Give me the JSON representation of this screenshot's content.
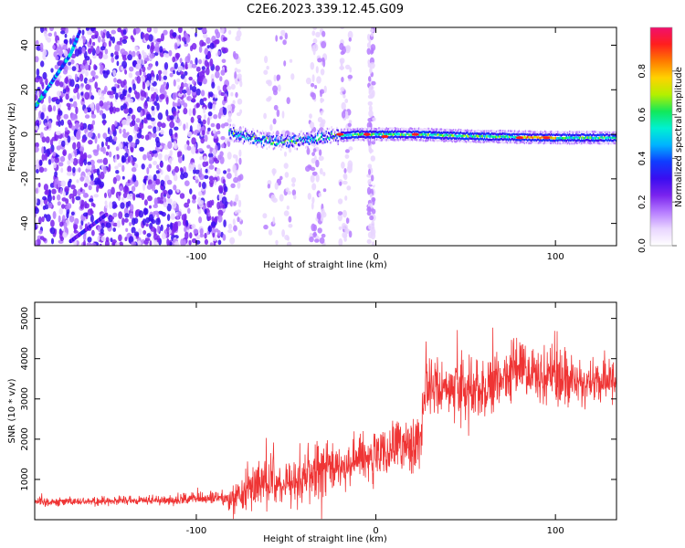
{
  "figure": {
    "title": "C2E6.2023.339.12.45.G09"
  },
  "colors": {
    "snr_line": "#ef3434",
    "rainbow": [
      "#ffffff",
      "#e9d6ff",
      "#b67cff",
      "#7a23ee",
      "#3a0df0",
      "#0f3cff",
      "#00b4ff",
      "#00f0d2",
      "#12e85a",
      "#b4f000",
      "#ffd200",
      "#ff7a00",
      "#ff1e1e",
      "#f0106e"
    ]
  },
  "chart_data": [
    {
      "type": "heatmap",
      "xlabel": "Height of straight line (km)",
      "ylabel": "Frequency (Hz)",
      "xlim": [
        -190,
        134
      ],
      "ylim": [
        -50,
        48
      ],
      "xticks": [
        -100,
        0,
        100
      ],
      "xtick_labels": [
        "-100",
        "0",
        "100"
      ],
      "yticks": [
        -40,
        -20,
        0,
        20,
        40
      ],
      "ytick_labels": [
        "-40",
        "-20",
        "0",
        "20",
        "40"
      ],
      "grid": false,
      "colorbar": {
        "label": "Normalized spectral amplitude",
        "range": [
          0,
          1
        ],
        "ticks": [
          0,
          0.2,
          0.4,
          0.6,
          0.8
        ],
        "tick_labels": [
          "0.0",
          "0.2",
          "0.4",
          "0.6",
          "0.8"
        ]
      },
      "features": [
        {
          "kind": "noise",
          "x_range": [
            -190,
            -83
          ],
          "f_range": [
            -50,
            48
          ],
          "amplitude": 0.25
        },
        {
          "kind": "sparse_noise",
          "x_range": [
            -83,
            0
          ],
          "f_range": [
            -50,
            48
          ],
          "amplitude": 0.12
        },
        {
          "kind": "dispersive_trace",
          "x": [
            -190,
            -180,
            -170,
            -165
          ],
          "f": [
            12,
            24,
            36,
            46
          ],
          "amplitude": 0.45
        },
        {
          "kind": "faint_trace",
          "x": [
            -170,
            -150
          ],
          "f": [
            -48,
            -36
          ],
          "amplitude": 0.3
        },
        {
          "kind": "carrier",
          "x": [
            -82,
            -60,
            -45,
            -30,
            -10,
            0,
            20,
            60,
            100,
            134
          ],
          "f": [
            1,
            -3,
            -3,
            -1,
            0,
            0,
            0,
            -1,
            -1.5,
            -1.5
          ],
          "amplitude": 0.6
        },
        {
          "kind": "peaks",
          "x": [
            -20,
            -5,
            5,
            22,
            80,
            95
          ],
          "f": [
            0,
            0,
            -1,
            0,
            -1.5,
            -1.5
          ],
          "amplitude": 0.9
        }
      ]
    },
    {
      "type": "line",
      "xlabel": "Height of straight line (km)",
      "ylabel": "SNR (10 * v/v)",
      "xlim": [
        -190,
        134
      ],
      "ylim": [
        0,
        5400
      ],
      "xticks": [
        -100,
        0,
        100
      ],
      "xtick_labels": [
        "-100",
        "0",
        "100"
      ],
      "yticks": [
        1000,
        2000,
        3000,
        4000,
        5000
      ],
      "ytick_labels": [
        "1000",
        "2000",
        "3000",
        "4000",
        "5000"
      ],
      "grid": false,
      "series": [
        {
          "color": "#ef3434",
          "x": [
            -190,
            -180,
            -160,
            -140,
            -120,
            -100,
            -90,
            -80,
            -70,
            -60,
            -50,
            -40,
            -30,
            -20,
            -10,
            0,
            10,
            20,
            25,
            27,
            40,
            60,
            80,
            90,
            100,
            110,
            120,
            134
          ],
          "center": [
            450,
            450,
            460,
            470,
            480,
            520,
            520,
            550,
            750,
            950,
            850,
            1100,
            1250,
            1300,
            1500,
            1550,
            1700,
            1900,
            2000,
            3300,
            3300,
            3250,
            3800,
            3600,
            3500,
            3500,
            3400,
            3500
          ],
          "spread": [
            120,
            130,
            130,
            140,
            150,
            170,
            180,
            380,
            700,
            750,
            650,
            800,
            900,
            700,
            750,
            800,
            800,
            850,
            900,
            800,
            950,
            900,
            850,
            800,
            1100,
            700,
            700,
            650
          ]
        }
      ]
    }
  ]
}
